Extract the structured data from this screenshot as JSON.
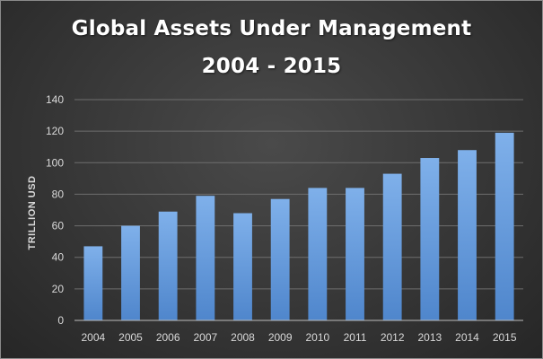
{
  "chart_data": {
    "type": "bar",
    "title": "Global Assets Under Management",
    "subtitle": "2004 - 2015",
    "xlabel": "",
    "ylabel": "TRILLION USD",
    "categories": [
      "2004",
      "2005",
      "2006",
      "2007",
      "2008",
      "2009",
      "2010",
      "2011",
      "2012",
      "2013",
      "2014",
      "2015"
    ],
    "values": [
      47,
      60,
      69,
      79,
      68,
      77,
      84,
      84,
      93,
      103,
      108,
      119
    ],
    "ylim": [
      0,
      140
    ],
    "yticks": [
      0,
      20,
      40,
      60,
      80,
      100,
      120,
      140
    ],
    "grid": true,
    "legend": "none",
    "colors": {
      "bar_top": "#7fb0ea",
      "bar_bottom": "#4f86cc",
      "grid": "#6e6e6e",
      "axis": "#bdbdbd"
    }
  }
}
